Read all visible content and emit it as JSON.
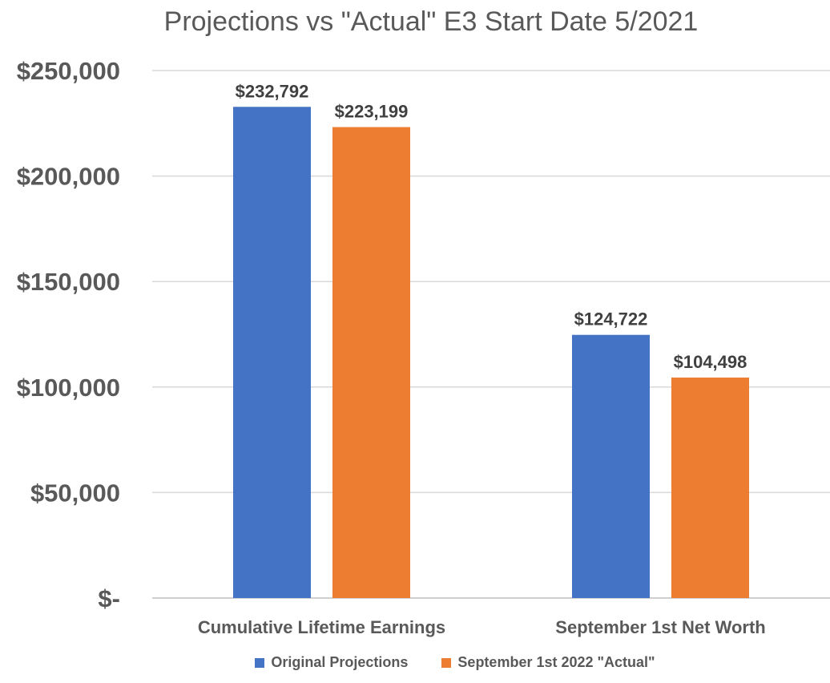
{
  "chart_data": {
    "type": "bar",
    "title": "Projections vs \"Actual\" E3 Start Date 5/2021",
    "xlabel": "",
    "ylabel": "",
    "categories": [
      "Cumulative Lifetime Earnings",
      "September 1st Net Worth"
    ],
    "series": [
      {
        "name": "Original Projections",
        "color": "#4472C4",
        "values": [
          232792,
          124722
        ],
        "labels": [
          "$232,792",
          "$124,722"
        ]
      },
      {
        "name": "September 1st 2022 \"Actual\"",
        "color": "#ED7D31",
        "values": [
          223199,
          104498
        ],
        "labels": [
          "$223,199",
          "$104,498"
        ]
      }
    ],
    "ylim": [
      0,
      250000
    ],
    "yticks": [
      0,
      50000,
      100000,
      150000,
      200000,
      250000
    ],
    "ytick_labels": [
      "$-",
      "$50,000",
      "$100,000",
      "$150,000",
      "$200,000",
      "$250,000"
    ],
    "grid": true,
    "legend_position": "bottom"
  }
}
